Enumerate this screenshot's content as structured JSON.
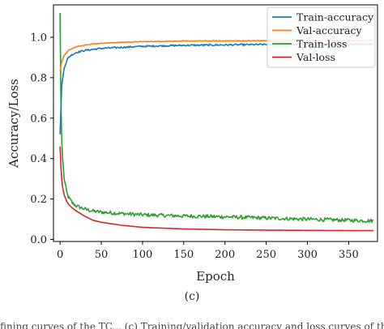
{
  "chart_data": {
    "type": "line",
    "xlabel": "Epoch",
    "ylabel": "Accuracy/Loss",
    "xlim": [
      -8,
      385
    ],
    "ylim": [
      -0.01,
      1.16
    ],
    "xticks": [
      0,
      50,
      100,
      150,
      200,
      250,
      300,
      350
    ],
    "yticks": [
      0.0,
      0.2,
      0.4,
      0.6,
      0.8,
      1.0
    ],
    "xtick_labels": [
      "0",
      "50",
      "100",
      "150",
      "200",
      "250",
      "300",
      "350"
    ],
    "ytick_labels": [
      "0.0",
      "0.2",
      "0.4",
      "0.6",
      "0.8",
      "1.0"
    ],
    "grid": false,
    "legend_position": "top-right",
    "series": [
      {
        "name": "Train-accuracy",
        "color": "#1f77b4",
        "noise": 0.004,
        "x": [
          0,
          2,
          5,
          10,
          15,
          20,
          30,
          40,
          50,
          75,
          100,
          150,
          200,
          250,
          300,
          380
        ],
        "y": [
          0.52,
          0.76,
          0.85,
          0.9,
          0.915,
          0.925,
          0.935,
          0.94,
          0.945,
          0.95,
          0.955,
          0.96,
          0.962,
          0.964,
          0.965,
          0.966
        ]
      },
      {
        "name": "Val-accuracy",
        "color": "#ff7f0e",
        "noise": 0.0015,
        "x": [
          0,
          2,
          5,
          10,
          15,
          20,
          30,
          40,
          50,
          75,
          100,
          150,
          200,
          250,
          300,
          380
        ],
        "y": [
          0.83,
          0.88,
          0.91,
          0.935,
          0.945,
          0.953,
          0.962,
          0.967,
          0.97,
          0.975,
          0.978,
          0.981,
          0.982,
          0.983,
          0.983,
          0.983
        ]
      },
      {
        "name": "Train-loss",
        "color": "#2ca02c",
        "noise": 0.009,
        "x": [
          0,
          1,
          2,
          3,
          5,
          8,
          10,
          15,
          20,
          30,
          40,
          50,
          75,
          100,
          150,
          200,
          250,
          300,
          350,
          380
        ],
        "y": [
          1.12,
          0.7,
          0.5,
          0.4,
          0.3,
          0.235,
          0.21,
          0.18,
          0.165,
          0.15,
          0.14,
          0.135,
          0.128,
          0.122,
          0.116,
          0.112,
          0.106,
          0.1,
          0.095,
          0.092
        ]
      },
      {
        "name": "Val-loss",
        "color": "#d62728",
        "noise": 0.0,
        "x": [
          0,
          1,
          2,
          3,
          5,
          8,
          10,
          15,
          20,
          30,
          40,
          50,
          75,
          100,
          150,
          200,
          250,
          300,
          350,
          380
        ],
        "y": [
          0.46,
          0.36,
          0.3,
          0.26,
          0.22,
          0.19,
          0.175,
          0.155,
          0.14,
          0.115,
          0.095,
          0.085,
          0.07,
          0.06,
          0.052,
          0.048,
          0.046,
          0.045,
          0.044,
          0.044
        ]
      }
    ]
  },
  "caption": "(c)",
  "cut_text": "fining curves of the TC... (c) Training/validation accuracy and loss curves of the..."
}
